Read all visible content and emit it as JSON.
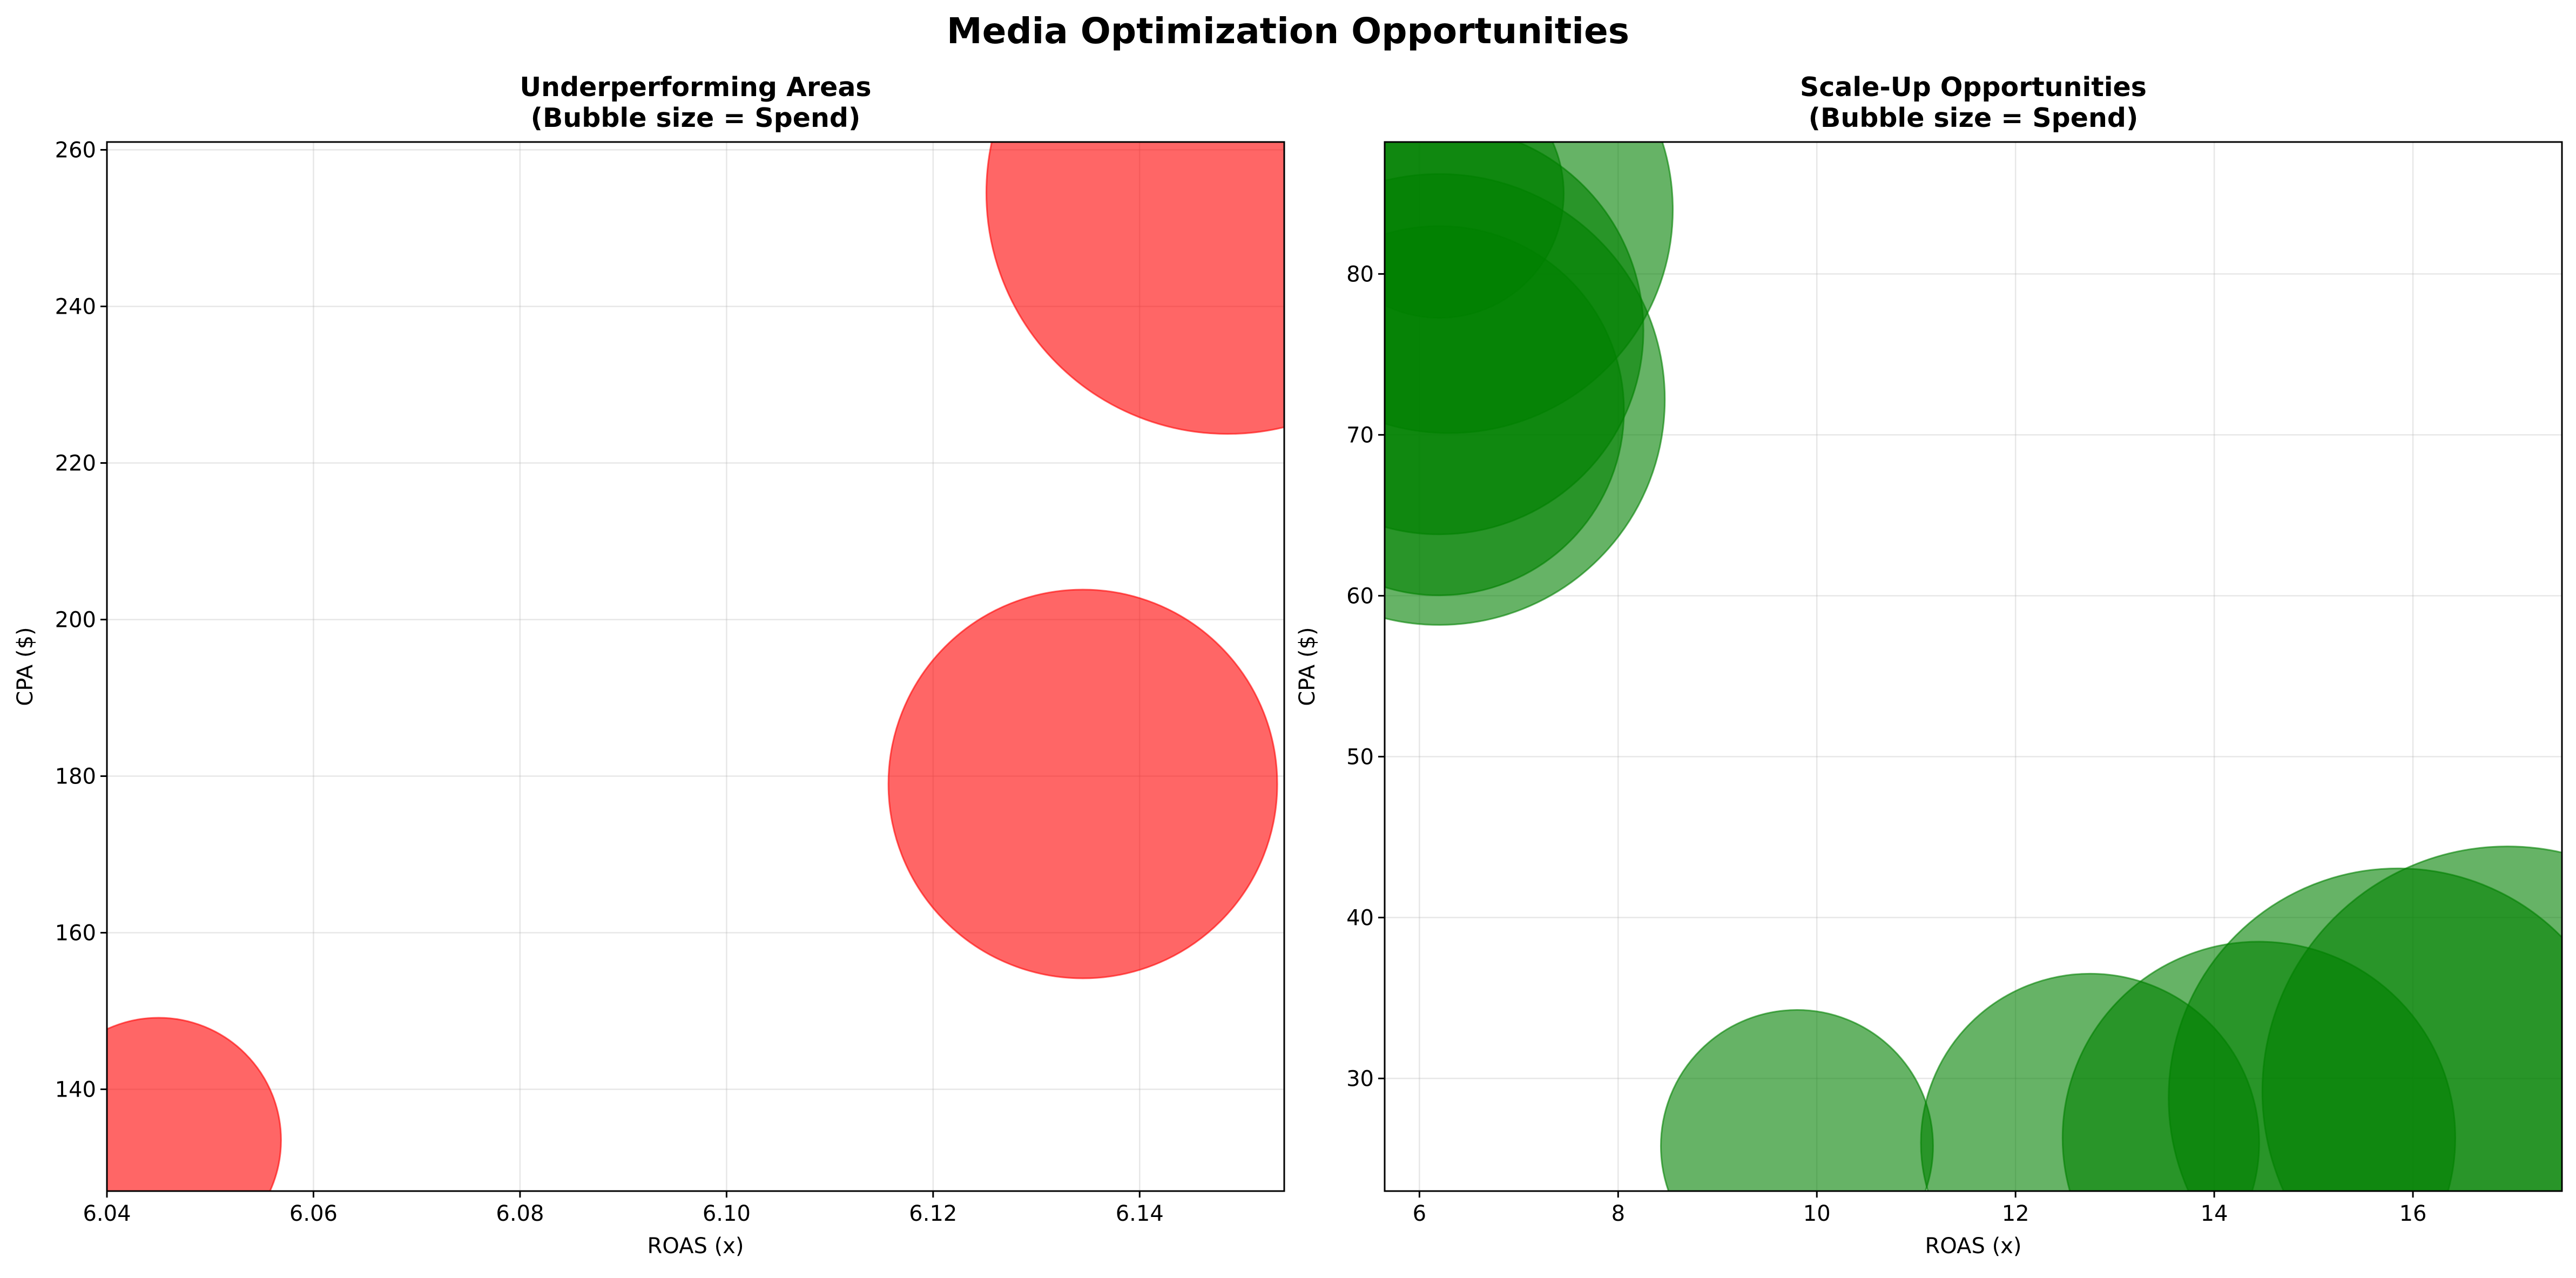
{
  "chart_data": {
    "suptitle": "Media Optimization Opportunities",
    "charts": [
      {
        "type": "scatter",
        "title_lines": [
          "Underperforming Areas",
          "(Bubble size = Spend)"
        ],
        "xlabel": "ROAS (x)",
        "ylabel": "CPA ($)",
        "xlim": [
          6.04,
          6.154
        ],
        "ylim": [
          127,
          261
        ],
        "xticks": [
          6.04,
          6.06,
          6.08,
          6.1,
          6.12,
          6.14
        ],
        "xtick_labels": [
          "6.04",
          "6.06",
          "6.08",
          "6.10",
          "6.12",
          "6.14"
        ],
        "yticks": [
          140,
          160,
          180,
          200,
          220,
          240,
          260
        ],
        "ytick_labels": [
          "140",
          "160",
          "180",
          "200",
          "220",
          "240",
          "260"
        ],
        "grid": true,
        "color": "#ff0000",
        "alpha": 0.6,
        "points": [
          {
            "x": 6.045,
            "y": 133.5,
            "size": 0.63
          },
          {
            "x": 6.1345,
            "y": 179,
            "size": 1.0
          },
          {
            "x": 6.1485,
            "y": 254.5,
            "size": 1.24
          }
        ]
      },
      {
        "type": "scatter",
        "title_lines": [
          "Scale-Up Opportunities",
          "(Bubble size = Spend)"
        ],
        "xlabel": "ROAS (x)",
        "ylabel": "CPA ($)",
        "xlim": [
          5.65,
          17.5
        ],
        "ylim": [
          23,
          88.2
        ],
        "xticks": [
          6,
          8,
          10,
          12,
          14,
          16
        ],
        "xtick_labels": [
          "6",
          "8",
          "10",
          "12",
          "14",
          "16"
        ],
        "yticks": [
          30,
          40,
          50,
          60,
          70,
          80
        ],
        "ytick_labels": [
          "30",
          "40",
          "50",
          "60",
          "70",
          "80"
        ],
        "grid": true,
        "color": "#008000",
        "alpha": 0.6,
        "points": [
          {
            "x": 6.2,
            "y": 85,
            "size": 0.64
          },
          {
            "x": 6.3,
            "y": 84,
            "size": 1.15
          },
          {
            "x": 6.2,
            "y": 71.5,
            "size": 0.95
          },
          {
            "x": 6.2,
            "y": 72.2,
            "size": 1.16
          },
          {
            "x": 6.2,
            "y": 76.5,
            "size": 1.05
          },
          {
            "x": 9.8,
            "y": 25.8,
            "size": 0.7
          },
          {
            "x": 12.75,
            "y": 26,
            "size": 0.87
          },
          {
            "x": 14.45,
            "y": 26.3,
            "size": 1.01
          },
          {
            "x": 15.85,
            "y": 28.8,
            "size": 1.18
          },
          {
            "x": 16.95,
            "y": 29.2,
            "size": 1.26
          }
        ]
      }
    ]
  }
}
